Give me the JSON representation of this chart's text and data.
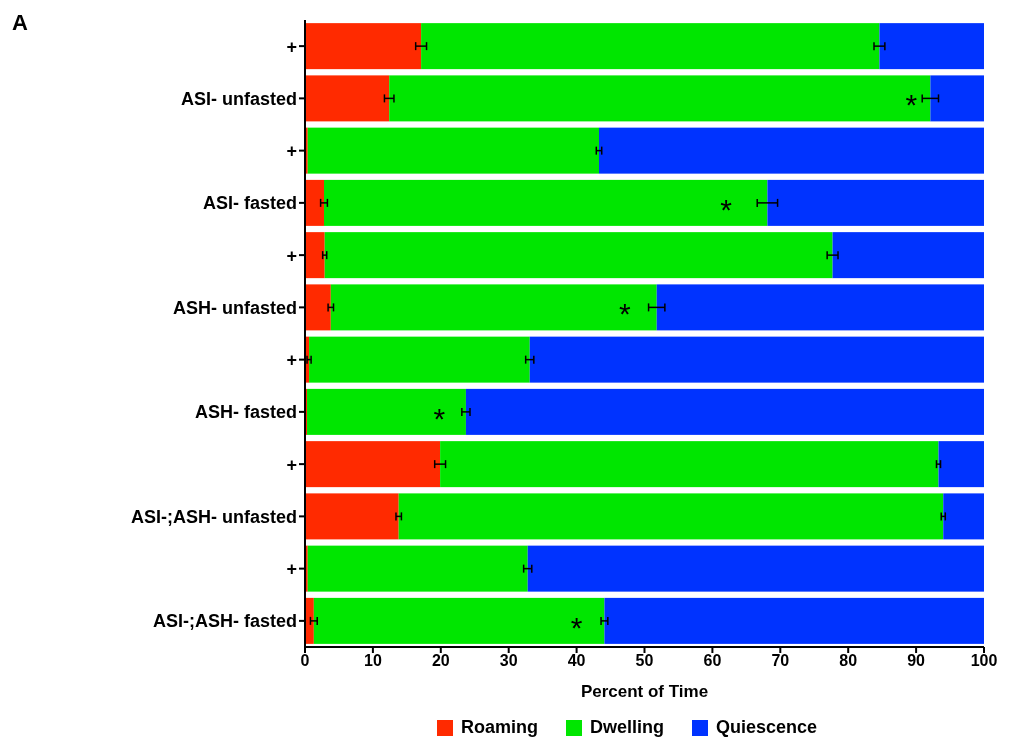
{
  "chart_data": {
    "type": "bar",
    "orientation": "horizontal",
    "stacked": true,
    "xlabel": "Percent of Time",
    "categories": [
      "+",
      "ASI- unfasted",
      "+",
      "ASI- fasted",
      "+",
      "ASH- unfasted",
      "+",
      "ASH- fasted",
      "+",
      "ASI-;ASH- unfasted",
      "+",
      "ASI-;ASH- fasted"
    ],
    "series": [
      {
        "name": "Roaming",
        "color": "#ff2a00",
        "values": [
          17.1,
          12.4,
          0.4,
          2.8,
          2.9,
          3.8,
          0.6,
          0.3,
          19.9,
          13.8,
          0.4,
          1.3
        ],
        "errors": [
          0.8,
          0.7,
          null,
          0.5,
          0.3,
          0.4,
          0.3,
          null,
          0.8,
          0.4,
          null,
          0.5
        ]
      },
      {
        "name": "Dwelling",
        "color": "#00e600",
        "values": [
          67.5,
          79.7,
          42.9,
          65.3,
          74.8,
          48.0,
          32.5,
          23.4,
          73.4,
          80.2,
          32.4,
          42.8
        ],
        "errors": [
          0.8,
          1.2,
          0.4,
          1.5,
          0.8,
          1.2,
          0.6,
          0.6,
          0.3,
          0.3,
          0.6,
          0.5
        ]
      },
      {
        "name": "Quiescence",
        "color": "#0033ff",
        "values": [
          15.4,
          7.9,
          56.7,
          31.9,
          22.3,
          48.2,
          66.9,
          76.3,
          6.7,
          6.0,
          67.2,
          55.9
        ]
      }
    ],
    "xlim": [
      0,
      100
    ],
    "xticks": [
      0,
      10,
      20,
      30,
      40,
      50,
      60,
      70,
      80,
      90,
      100
    ],
    "grid": false,
    "legend": "bottom",
    "annotations": [
      "A",
      {
        "text": "*",
        "x": 89.3,
        "y": "ASI- unfasted"
      },
      {
        "text": "*",
        "x": 62,
        "y": "ASI- fasted"
      },
      {
        "text": "*",
        "x": 47.1,
        "y": "ASH- unfasted"
      },
      {
        "text": "*",
        "x": 19.8,
        "y": "ASH- fasted"
      },
      {
        "text": "*",
        "x": 40,
        "y": "ASI-;ASH- fasted"
      }
    ]
  }
}
